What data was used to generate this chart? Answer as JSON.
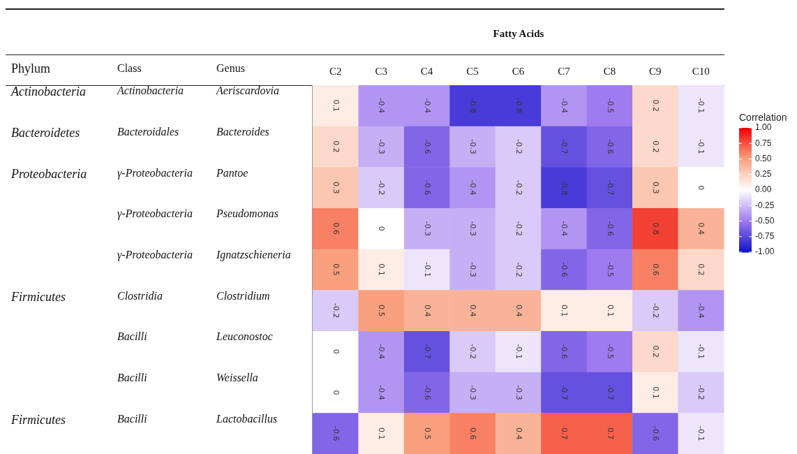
{
  "chart_data": {
    "type": "heatmap",
    "title": "Fatty Acids",
    "ylabel": "Genus",
    "clabel": "Correlation",
    "categories": [
      "C2",
      "C3",
      "C4",
      "C5",
      "C6",
      "C7",
      "C8",
      "C9",
      "C10"
    ],
    "y_categories": [
      "Aeriscardovia",
      "Bacteroides",
      "Pantoe",
      "Pseudomonas",
      "Ignatzschieneria",
      "Clostridium",
      "Leuconostoc",
      "Weissella",
      "Lactobacillus"
    ],
    "y2_categories": [
      "Actinobacteria",
      "Bacteroidales",
      "γ-Proteobacteria",
      "γ-Proteobacteria",
      "γ-Proteobacteria",
      "Clostridia",
      "Bacilli",
      "Bacilli",
      "Bacilli"
    ],
    "cells": [
      [
        0.1,
        -0.4,
        -0.4,
        -0.8,
        -0.8,
        -0.4,
        -0.5,
        0.2,
        -0.1
      ],
      [
        0.2,
        -0.3,
        -0.6,
        -0.3,
        -0.2,
        -0.7,
        -0.6,
        0.2,
        -0.1
      ],
      [
        0.3,
        -0.2,
        -0.6,
        -0.4,
        -0.2,
        -0.8,
        -0.7,
        0.3,
        0
      ],
      [
        0.6,
        0,
        -0.3,
        -0.3,
        -0.2,
        -0.4,
        -0.6,
        0.8,
        0.4
      ],
      [
        0.5,
        0.1,
        -0.1,
        -0.3,
        -0.2,
        -0.6,
        -0.5,
        0.6,
        0.2
      ],
      [
        -0.2,
        0.5,
        0.4,
        0.4,
        0.4,
        0.1,
        0.1,
        -0.2,
        -0.4
      ],
      [
        0,
        -0.4,
        -0.7,
        -0.2,
        -0.1,
        -0.6,
        -0.5,
        0.2,
        -0.1
      ],
      [
        0,
        -0.4,
        -0.6,
        -0.3,
        -0.3,
        -0.7,
        -0.7,
        0.1,
        -0.2
      ],
      [
        -0.6,
        0.1,
        0.5,
        0.6,
        0.4,
        0.7,
        0.7,
        -0.6,
        -0.1
      ]
    ],
    "data_labels": true,
    "clim": [
      -1,
      1
    ],
    "cticks": [
      {
        "value": 1,
        "label": "1.00"
      },
      {
        "value": 0.75,
        "label": "0.75"
      },
      {
        "value": 0.5,
        "label": "0.50"
      },
      {
        "value": 0.25,
        "label": "0.25"
      },
      {
        "value": 0,
        "label": "0.00"
      },
      {
        "value": -0.25,
        "label": "-0.25"
      },
      {
        "value": -0.5,
        "label": "-0.50"
      },
      {
        "value": -0.75,
        "label": "-0.75"
      },
      {
        "value": -1,
        "label": "-1.00"
      }
    ],
    "annotations": [
      "Phylum",
      "Class",
      "Actinobacteria",
      "Bacteroidetes",
      "Proteobacteria",
      "Firmicutes",
      "Firmicutes"
    ]
  }
}
